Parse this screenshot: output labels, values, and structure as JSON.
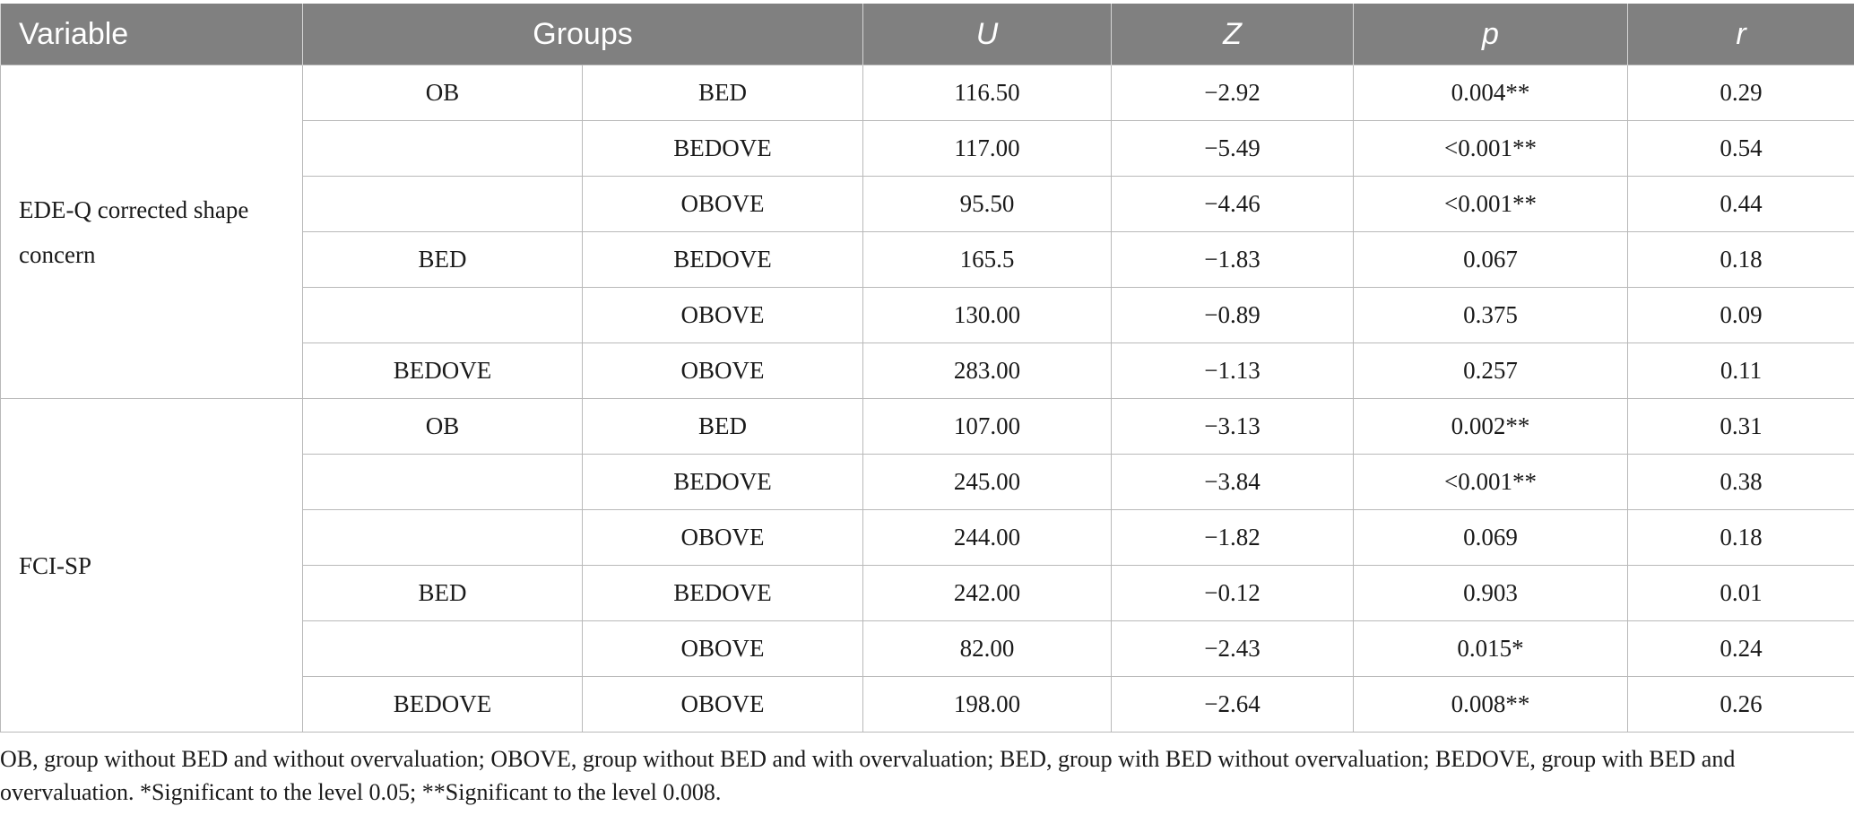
{
  "header": {
    "variable": "Variable",
    "groups": "Groups",
    "u": "U",
    "z": "Z",
    "p": "p",
    "r": "r"
  },
  "sections": [
    {
      "variable": "EDE-Q corrected shape concern",
      "rows": [
        {
          "g1": "OB",
          "g2": "BED",
          "u": "116.50",
          "z": "−2.92",
          "p": "0.004**",
          "r": "0.29"
        },
        {
          "g1": "",
          "g2": "BEDOVE",
          "u": "117.00",
          "z": "−5.49",
          "p": "<0.001**",
          "r": "0.54"
        },
        {
          "g1": "",
          "g2": "OBOVE",
          "u": "95.50",
          "z": "−4.46",
          "p": "<0.001**",
          "r": "0.44"
        },
        {
          "g1": "BED",
          "g2": "BEDOVE",
          "u": "165.5",
          "z": "−1.83",
          "p": "0.067",
          "r": "0.18"
        },
        {
          "g1": "",
          "g2": "OBOVE",
          "u": "130.00",
          "z": "−0.89",
          "p": "0.375",
          "r": "0.09"
        },
        {
          "g1": "BEDOVE",
          "g2": "OBOVE",
          "u": "283.00",
          "z": "−1.13",
          "p": "0.257",
          "r": "0.11"
        }
      ]
    },
    {
      "variable": "FCI-SP",
      "rows": [
        {
          "g1": "OB",
          "g2": "BED",
          "u": "107.00",
          "z": "−3.13",
          "p": "0.002**",
          "r": "0.31"
        },
        {
          "g1": "",
          "g2": "BEDOVE",
          "u": "245.00",
          "z": "−3.84",
          "p": "<0.001**",
          "r": "0.38"
        },
        {
          "g1": "",
          "g2": "OBOVE",
          "u": "244.00",
          "z": "−1.82",
          "p": "0.069",
          "r": "0.18"
        },
        {
          "g1": "BED",
          "g2": "BEDOVE",
          "u": "242.00",
          "z": "−0.12",
          "p": "0.903",
          "r": "0.01"
        },
        {
          "g1": "",
          "g2": "OBOVE",
          "u": "82.00",
          "z": "−2.43",
          "p": "0.015*",
          "r": "0.24"
        },
        {
          "g1": "BEDOVE",
          "g2": "OBOVE",
          "u": "198.00",
          "z": "−2.64",
          "p": "0.008**",
          "r": "0.26"
        }
      ]
    }
  ],
  "footnote": "OB, group without BED and without overvaluation; OBOVE, group without BED and with overvaluation; BED, group with BED without overvaluation; BEDOVE, group with BED and overvaluation. *Significant to the level 0.05; **Significant to the level 0.008."
}
